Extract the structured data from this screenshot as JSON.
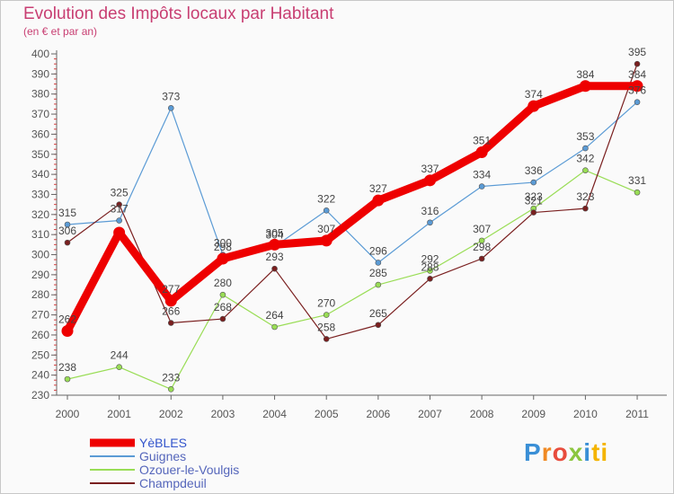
{
  "title": "Evolution des Impôts locaux par Habitant",
  "subtitle": "(en € et par an)",
  "brand": "Proxiti",
  "chart_data": {
    "type": "line",
    "x": [
      "2000",
      "2001",
      "2002",
      "2003",
      "2004",
      "2005",
      "2006",
      "2007",
      "2008",
      "2009",
      "2010",
      "2011"
    ],
    "ylim": [
      230,
      400
    ],
    "yticks": [
      230,
      240,
      250,
      260,
      270,
      280,
      290,
      300,
      310,
      320,
      330,
      340,
      350,
      360,
      370,
      380,
      390,
      400
    ],
    "grid": false,
    "legend": "bottom-left",
    "series": [
      {
        "name": "YèBLES",
        "color": "#ee0000",
        "values": [
          262,
          311,
          277,
          298,
          305,
          307,
          327,
          337,
          351,
          374,
          384,
          384
        ],
        "labels": [
          "262",
          "",
          "277",
          "298",
          "305",
          "307",
          "327",
          "337",
          "351",
          "374",
          "384",
          "384"
        ]
      },
      {
        "name": "Guignes",
        "color": "#5b9bd5",
        "values": [
          315,
          317,
          373,
          300,
          304,
          322,
          296,
          316,
          334,
          336,
          353,
          376
        ],
        "labels": [
          "315",
          "317",
          "373",
          "300",
          "304",
          "322",
          "296",
          "316",
          "334",
          "336",
          "353",
          "376"
        ]
      },
      {
        "name": "Ozouer-le-Voulgis",
        "color": "#99dd55",
        "values": [
          238,
          244,
          233,
          280,
          264,
          270,
          285,
          292,
          307,
          323,
          342,
          331
        ],
        "labels": [
          "238",
          "244",
          "233",
          "280",
          "264",
          "270",
          "285",
          "292",
          "307",
          "323",
          "342",
          "331"
        ]
      },
      {
        "name": "Champdeuil",
        "color": "#7a1f1f",
        "values": [
          306,
          325,
          266,
          268,
          293,
          258,
          265,
          288,
          298,
          321,
          323,
          395
        ],
        "labels": [
          "306",
          "325",
          "266",
          "268",
          "293",
          "258",
          "265",
          "288",
          "298",
          "321",
          "323",
          "395"
        ]
      }
    ]
  }
}
